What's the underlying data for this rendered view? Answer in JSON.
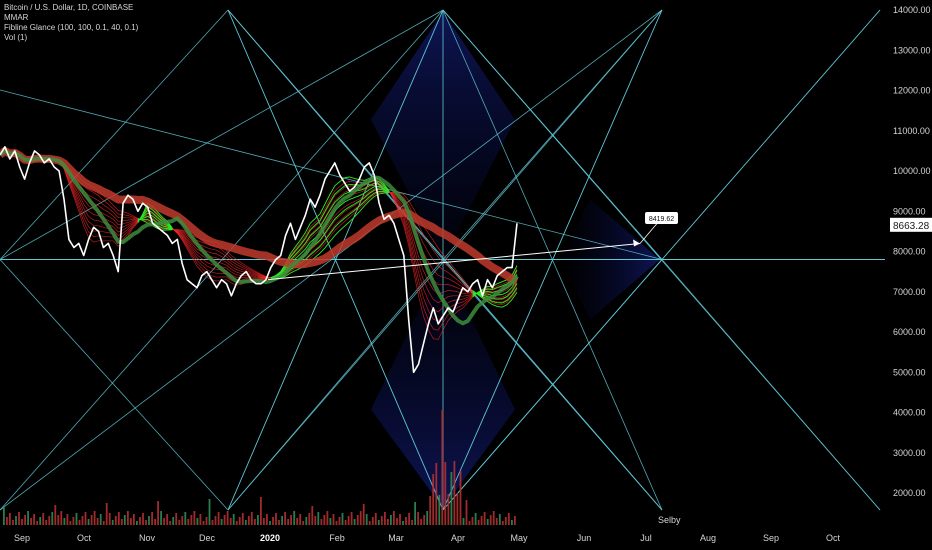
{
  "legend": {
    "symbol_line": "Bitcoin / U.S. Dollar, 1D, COINBASE",
    "mmar_line": "MMAR",
    "fibline_line": "Fibline Glance (100, 100, 0.1, 40, 0.1)",
    "vol_line": "Vol (1)"
  },
  "chart_data": {
    "type": "line",
    "y_axis": {
      "ticks": [
        "14000.00",
        "13000.00",
        "12000.00",
        "11000.00",
        "10000.00",
        "9000.00",
        "8000.00",
        "7000.00",
        "6000.00",
        "5000.00",
        "4000.00",
        "3000.00",
        "2000.00"
      ],
      "tick_values": [
        14000,
        13000,
        12000,
        11000,
        10000,
        9000,
        8000,
        7000,
        6000,
        5000,
        4000,
        3000,
        2000
      ],
      "range": [
        1500,
        14200
      ]
    },
    "x_axis": {
      "ticks": [
        "Sep",
        "Oct",
        "Nov",
        "Dec",
        "2020",
        "Feb",
        "Mar",
        "Apr",
        "May",
        "Jun",
        "Jul",
        "Aug",
        "Sep",
        "Oct"
      ],
      "bold_tick": "2020"
    },
    "price_series": {
      "name": "BTCUSD",
      "color": "#ffffff",
      "values": [
        10400,
        10600,
        10300,
        10500,
        10100,
        9800,
        10200,
        10500,
        10400,
        10200,
        10300,
        10100,
        10000,
        9300,
        8300,
        8100,
        8200,
        7900,
        8300,
        8600,
        8500,
        8100,
        8200,
        7900,
        7500,
        9200,
        9400,
        9300,
        9000,
        9200,
        9100,
        8700,
        8600,
        8500,
        8400,
        8200,
        8300,
        7700,
        7300,
        7200,
        7100,
        7400,
        7500,
        7300,
        7100,
        7300,
        7200,
        6900,
        7200,
        7400,
        7500,
        7300,
        7200,
        7200,
        7300,
        7600,
        7800,
        7900,
        8400,
        8700,
        8300,
        8600,
        8900,
        9300,
        9100,
        9400,
        9800,
        10000,
        10200,
        9900,
        9700,
        9500,
        9600,
        9800,
        10100,
        10200,
        9900,
        9200,
        8800,
        8900,
        8700,
        8300,
        7900,
        6300,
        5000,
        5200,
        5700,
        6200,
        6600,
        6200,
        6400,
        6600,
        6500,
        6800,
        7100,
        7000,
        7200,
        7300,
        6900,
        7300,
        7100,
        7400,
        7500,
        7600,
        7600,
        8700
      ],
      "last_value": "8663.28",
      "last_color": "#1a1a1a"
    },
    "annotation": {
      "text": "8419.62",
      "target_value": 8419.62
    },
    "watermark": "Selby",
    "colors": {
      "fib_lines": "#5fc7d6",
      "ma_red": "#c0392b",
      "ma_green": "#3d8c3d",
      "ribbon_red": "#ff2a2a",
      "ribbon_green": "#22ee22",
      "volume": "#b33030",
      "axis_text": "#d4d4d4"
    }
  }
}
